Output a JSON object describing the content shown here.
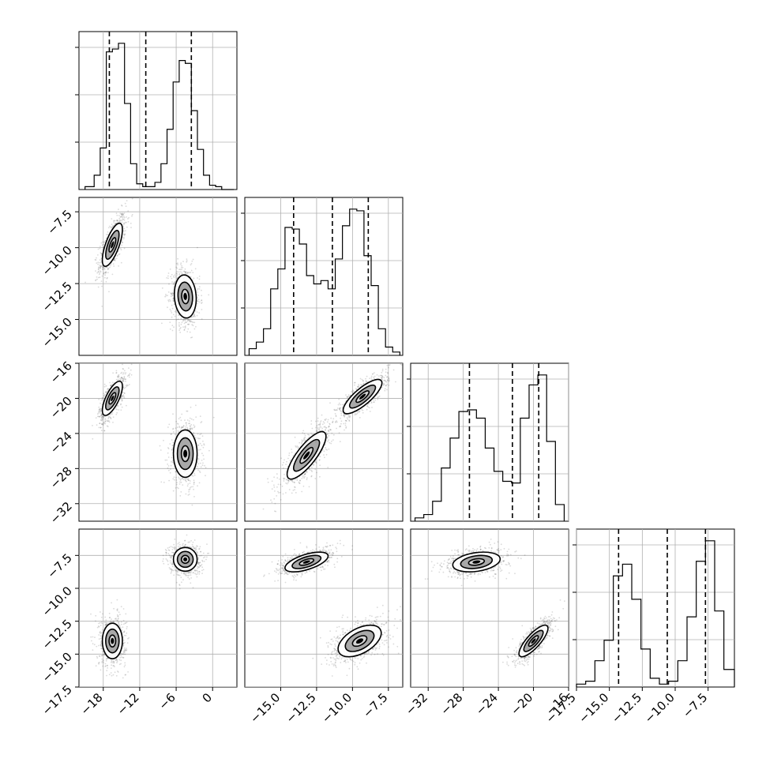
{
  "chart_data": {
    "type": "corner",
    "title": "",
    "parameters": [
      {
        "label": "",
        "range": [
          -22,
          4
        ],
        "ticks": [
          -18,
          -12,
          -6,
          0
        ],
        "tick_labels": [
          "−18",
          "−12",
          "−6",
          "0"
        ]
      },
      {
        "label": "",
        "range": [
          -17.5,
          -6.5
        ],
        "ticks": [
          -15.0,
          -12.5,
          -10.0,
          -7.5
        ],
        "tick_labels": [
          "−15.0",
          "−12.5",
          "−10.0",
          "−7.5"
        ]
      },
      {
        "label": "",
        "range": [
          -34,
          -16
        ],
        "ticks": [
          -32,
          -28,
          -24,
          -20,
          -16
        ],
        "tick_labels": [
          "−32",
          "−28",
          "−24",
          "−20",
          "−16"
        ]
      },
      {
        "label": "",
        "range": [
          -17.5,
          -5.5
        ],
        "ticks": [
          -17.5,
          -15.0,
          -12.5,
          -10.0,
          -7.5
        ],
        "tick_labels": [
          "−17.5",
          "−15.0",
          "−12.5",
          "−10.0",
          "−7.5"
        ]
      }
    ],
    "histograms": [
      {
        "bins": [
          -21,
          -19.5,
          -18.5,
          -17.5,
          -16.5,
          -15.5,
          -14.5,
          -13.5,
          -12.5,
          -11.5,
          -10.5,
          -9.5,
          -8.5,
          -7.5,
          -6.5,
          -5.5,
          -4.5,
          -3.5,
          -2.5,
          -1.5,
          -0.5,
          0.5,
          1.5,
          2.5,
          3.5
        ],
        "counts": [
          2,
          10,
          29,
          96,
          98,
          102,
          60,
          18,
          4,
          2,
          2,
          5,
          18,
          42,
          75,
          90,
          88,
          55,
          28,
          10,
          3,
          2,
          0,
          0
        ],
        "quantiles": [
          -17.0,
          -11.0,
          -3.5
        ]
      },
      {
        "bins": [
          -17.2,
          -16.7,
          -16.2,
          -15.7,
          -15.2,
          -14.7,
          -14.2,
          -13.7,
          -13.2,
          -12.7,
          -12.2,
          -11.7,
          -11.2,
          -10.7,
          -10.2,
          -9.7,
          -9.2,
          -8.7,
          -8.2,
          -7.7,
          -7.2,
          -6.7
        ],
        "counts": [
          4,
          8,
          16,
          40,
          52,
          77,
          76,
          67,
          48,
          43,
          45,
          40,
          58,
          78,
          88,
          87,
          60,
          42,
          16,
          5,
          2
        ],
        "quantiles": [
          -14.1,
          -11.4,
          -8.9
        ]
      },
      {
        "bins": [
          -33.5,
          -32.5,
          -31.5,
          -30.5,
          -29.5,
          -28.5,
          -27.5,
          -26.5,
          -25.5,
          -24.5,
          -23.5,
          -22.5,
          -21.5,
          -20.5,
          -19.5,
          -18.5,
          -17.5,
          -16.5
        ],
        "counts": [
          2,
          4,
          12,
          32,
          50,
          66,
          67,
          62,
          44,
          30,
          24,
          23,
          62,
          82,
          88,
          48,
          10
        ],
        "quantiles": [
          -27.3,
          -22.4,
          -19.4
        ]
      },
      {
        "bins": [
          -17.5,
          -16.8,
          -16.1,
          -15.4,
          -14.7,
          -14.0,
          -13.3,
          -12.6,
          -11.9,
          -11.2,
          -10.5,
          -9.8,
          -9.1,
          -8.4,
          -7.7,
          -7.0,
          -6.3,
          -5.5
        ],
        "counts": [
          2,
          4,
          18,
          32,
          76,
          84,
          60,
          26,
          6,
          2,
          4,
          18,
          48,
          86,
          100,
          52,
          12
        ],
        "quantiles": [
          -14.3,
          -10.6,
          -7.7
        ]
      }
    ],
    "joint": [
      {
        "x_param": 0,
        "y_param": 1,
        "modes": [
          {
            "cx": -16.5,
            "cy": -9.8,
            "sx": 1.1,
            "sy": 1.0,
            "rho": 0.7
          },
          {
            "cx": -4.5,
            "cy": -13.4,
            "sx": 1.2,
            "sy": 1.0,
            "rho": -0.1
          }
        ]
      },
      {
        "x_param": 0,
        "y_param": 2,
        "modes": [
          {
            "cx": -16.5,
            "cy": -20.0,
            "sx": 1.1,
            "sy": 1.3,
            "rho": 0.7
          },
          {
            "cx": -4.5,
            "cy": -26.3,
            "sx": 1.3,
            "sy": 1.8,
            "rho": 0.0
          }
        ]
      },
      {
        "x_param": 1,
        "y_param": 2,
        "modes": [
          {
            "cx": -13.2,
            "cy": -26.5,
            "sx": 0.9,
            "sy": 1.8,
            "rho": 0.8
          },
          {
            "cx": -9.3,
            "cy": -19.8,
            "sx": 0.9,
            "sy": 1.3,
            "rho": 0.8
          }
        ]
      },
      {
        "x_param": 0,
        "y_param": 3,
        "modes": [
          {
            "cx": -16.5,
            "cy": -14.0,
            "sx": 1.1,
            "sy": 0.9,
            "rho": 0.0
          },
          {
            "cx": -4.5,
            "cy": -7.8,
            "sx": 1.3,
            "sy": 0.6,
            "rho": 0.0
          }
        ]
      },
      {
        "x_param": 1,
        "y_param": 3,
        "modes": [
          {
            "cx": -13.2,
            "cy": -8.0,
            "sx": 1.0,
            "sy": 0.5,
            "rho": 0.6
          },
          {
            "cx": -9.5,
            "cy": -14.0,
            "sx": 1.0,
            "sy": 0.8,
            "rho": 0.5
          }
        ]
      },
      {
        "x_param": 2,
        "y_param": 3,
        "modes": [
          {
            "cx": -26.5,
            "cy": -8.0,
            "sx": 1.8,
            "sy": 0.5,
            "rho": 0.3
          },
          {
            "cx": -20.0,
            "cy": -14.0,
            "sx": 1.1,
            "sy": 0.8,
            "rho": 0.8
          }
        ]
      }
    ],
    "grid": true,
    "colors": {
      "line": "#000000",
      "grid": "#b0b0b0",
      "scatter": "#333333",
      "fill_low": "#dcdcdc",
      "fill_mid": "#9a9a9a",
      "fill_high": "#000000"
    }
  }
}
